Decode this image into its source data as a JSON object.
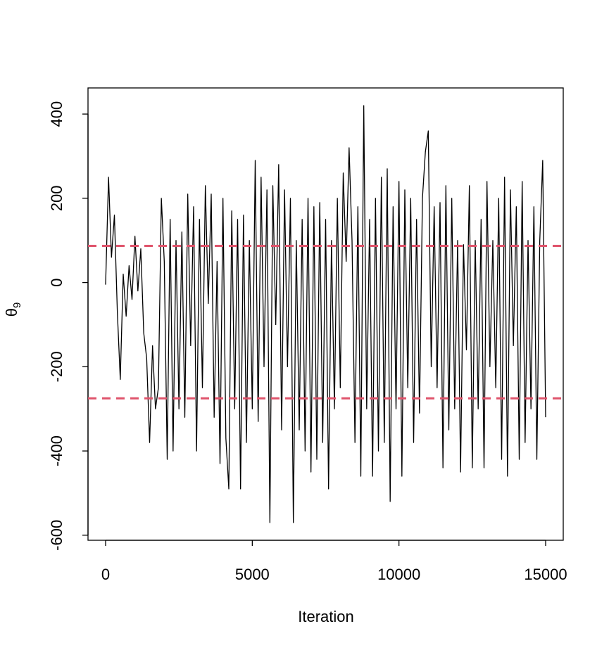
{
  "chart_data": {
    "type": "line",
    "xlabel": "Iteration",
    "ylabel": "θ",
    "ylabel_sub": "9",
    "x": [
      0,
      100,
      200,
      300,
      400,
      500,
      600,
      700,
      800,
      900,
      1000,
      1100,
      1200,
      1300,
      1400,
      1500,
      1600,
      1700,
      1800,
      1900,
      2000,
      2100,
      2200,
      2300,
      2400,
      2500,
      2600,
      2700,
      2800,
      2900,
      3000,
      3100,
      3200,
      3300,
      3400,
      3500,
      3600,
      3700,
      3800,
      3900,
      4000,
      4100,
      4200,
      4300,
      4400,
      4500,
      4600,
      4700,
      4800,
      4900,
      5000,
      5100,
      5200,
      5300,
      5400,
      5500,
      5600,
      5700,
      5800,
      5900,
      6000,
      6100,
      6200,
      6300,
      6400,
      6500,
      6600,
      6700,
      6800,
      6900,
      7000,
      7100,
      7200,
      7300,
      7400,
      7500,
      7600,
      7700,
      7800,
      7900,
      8000,
      8100,
      8200,
      8300,
      8400,
      8500,
      8600,
      8700,
      8800,
      8900,
      9000,
      9100,
      9200,
      9300,
      9400,
      9500,
      9600,
      9700,
      9800,
      9900,
      10000,
      10100,
      10200,
      10300,
      10400,
      10500,
      10600,
      10700,
      10800,
      10900,
      11000,
      11100,
      11200,
      11300,
      11400,
      11500,
      11600,
      11700,
      11800,
      11900,
      12000,
      12100,
      12200,
      12300,
      12400,
      12500,
      12600,
      12700,
      12800,
      12900,
      13000,
      13100,
      13200,
      13300,
      13400,
      13500,
      13600,
      13700,
      13800,
      13900,
      14000,
      14100,
      14200,
      14300,
      14400,
      14500,
      14600,
      14700,
      14800,
      14900,
      15000
    ],
    "values": [
      -5,
      250,
      60,
      160,
      -70,
      -230,
      20,
      -80,
      40,
      -40,
      110,
      -20,
      80,
      -120,
      -180,
      -380,
      -150,
      -300,
      -250,
      200,
      50,
      -420,
      150,
      -400,
      100,
      -300,
      120,
      -320,
      210,
      -150,
      180,
      -400,
      150,
      -250,
      230,
      -50,
      210,
      -320,
      50,
      -430,
      200,
      -370,
      -490,
      170,
      -300,
      150,
      -490,
      160,
      -380,
      100,
      -300,
      290,
      -330,
      250,
      -200,
      220,
      -570,
      230,
      -100,
      280,
      -350,
      220,
      -200,
      200,
      -570,
      100,
      -350,
      150,
      -400,
      200,
      -450,
      180,
      -420,
      190,
      -380,
      150,
      -490,
      100,
      -300,
      200,
      -250,
      260,
      50,
      320,
      100,
      -380,
      180,
      -460,
      420,
      -300,
      150,
      -460,
      200,
      -400,
      250,
      -380,
      270,
      -520,
      180,
      -300,
      240,
      -460,
      220,
      -250,
      200,
      -380,
      150,
      -310,
      200,
      310,
      360,
      -200,
      180,
      -250,
      190,
      -440,
      230,
      -350,
      200,
      -300,
      100,
      -450,
      90,
      -160,
      230,
      -440,
      100,
      -300,
      150,
      -440,
      240,
      -200,
      100,
      -250,
      200,
      -420,
      250,
      -460,
      220,
      -150,
      180,
      -420,
      240,
      -380,
      100,
      -300,
      180,
      -420,
      100,
      290,
      -320
    ],
    "color": "#000000",
    "hlines": [
      87,
      -275
    ],
    "hline_color": "#DF536B",
    "xlim": [
      -600,
      15600
    ],
    "xticks": [
      0,
      5000,
      10000,
      15000
    ],
    "ylim": [
      -612,
      462
    ],
    "yticks": [
      -600,
      -400,
      -200,
      0,
      200,
      400
    ]
  }
}
